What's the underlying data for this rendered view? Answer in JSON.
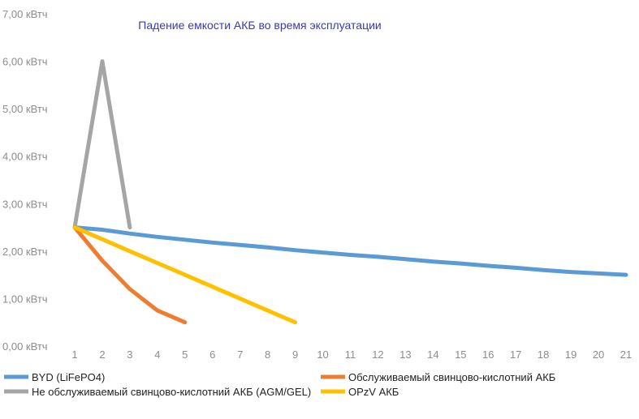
{
  "chart_data": {
    "type": "line",
    "title": "Падение емкости АКБ во время эксплуатации",
    "xlabel": "",
    "ylabel": "",
    "x": [
      1,
      2,
      3,
      4,
      5,
      6,
      7,
      8,
      9,
      10,
      11,
      12,
      13,
      14,
      15,
      16,
      17,
      18,
      19,
      20,
      21
    ],
    "x_tick_labels": [
      "1",
      "2",
      "3",
      "4",
      "5",
      "6",
      "7",
      "8",
      "9",
      "10",
      "11",
      "12",
      "13",
      "14",
      "15",
      "16",
      "17",
      "18",
      "19",
      "20",
      "21"
    ],
    "ylim": [
      0,
      7
    ],
    "y_ticks": [
      0,
      1,
      2,
      3,
      4,
      5,
      6,
      7
    ],
    "y_tick_labels": [
      "0,00 кВтч",
      "1,00 кВтч",
      "2,00 кВтч",
      "3,00 кВтч",
      "4,00 кВтч",
      "5,00 кВтч",
      "6,00 кВтч",
      "7,00 кВтч"
    ],
    "grid": false,
    "legend_position": "bottom",
    "series": [
      {
        "name": "BYD (LiFePO4)",
        "color": "#5b9bd5",
        "x": [
          1,
          2,
          3,
          4,
          5,
          6,
          7,
          8,
          9,
          10,
          11,
          12,
          13,
          14,
          15,
          16,
          17,
          18,
          19,
          20,
          21
        ],
        "values": [
          2.5,
          2.45,
          2.37,
          2.3,
          2.24,
          2.18,
          2.13,
          2.08,
          2.02,
          1.97,
          1.92,
          1.88,
          1.83,
          1.78,
          1.74,
          1.69,
          1.65,
          1.6,
          1.56,
          1.53,
          1.5
        ]
      },
      {
        "name": "Обслуживаемый свинцово-кислотний АКБ",
        "color": "#ed7d31",
        "x": [
          1,
          2,
          3,
          4,
          5
        ],
        "values": [
          2.5,
          1.8,
          1.2,
          0.75,
          0.5
        ]
      },
      {
        "name": "Не обслуживаемый свинцово-кислотний АКБ (AGM/GEL)",
        "color": "#a5a5a5",
        "x": [
          1,
          2,
          3
        ],
        "values": [
          2.5,
          6.0,
          2.5
        ]
      },
      {
        "name": "OPzV АКБ",
        "color": "#ffc000",
        "x": [
          1,
          2,
          3,
          4,
          5,
          6,
          7,
          8,
          9
        ],
        "values": [
          2.5,
          2.25,
          2.0,
          1.75,
          1.5,
          1.25,
          1.0,
          0.75,
          0.5
        ]
      }
    ]
  }
}
